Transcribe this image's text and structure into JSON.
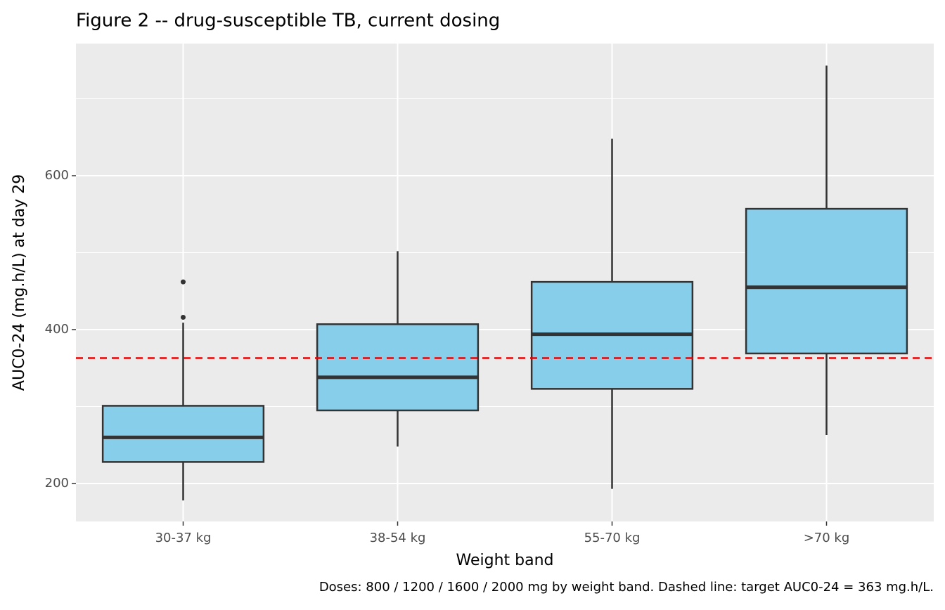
{
  "chart_data": {
    "type": "box",
    "title": "Figure 2 -- drug-susceptible TB, current dosing",
    "x_label": "Weight band",
    "y_label": "AUC0-24 (mg.h/L) at day 29",
    "caption": "Doses: 800 / 1200 / 1600 / 2000 mg by weight band. Dashed line: target AUC0-24 = 363 mg.h/L.",
    "categories": [
      "30-37 kg",
      "38-54 kg",
      "55-70 kg",
      ">70 kg"
    ],
    "min": [
      178,
      248,
      193,
      263
    ],
    "q1": [
      228,
      295,
      323,
      369
    ],
    "median": [
      260,
      338,
      394,
      455
    ],
    "q3": [
      301,
      407,
      462,
      557
    ],
    "max": [
      409,
      502,
      648,
      743
    ],
    "outliers": [
      [
        416,
        462
      ],
      [],
      [],
      []
    ],
    "color": "#87ceeb",
    "reference_line": {
      "value": 363,
      "color": "#ee0000"
    },
    "ylim": [
      150.7,
      771.7
    ],
    "yticks": [
      200,
      400,
      600
    ],
    "y_minor_ticks": [
      300,
      500,
      700
    ],
    "grid": true
  }
}
